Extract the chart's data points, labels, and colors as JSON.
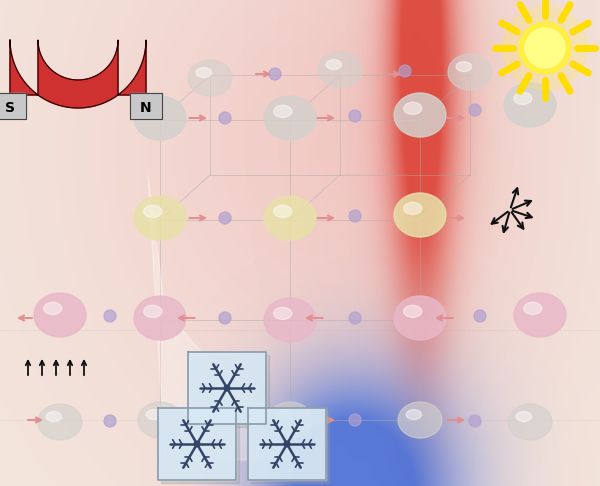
{
  "bg_color": "#f2e4dc",
  "fig_width": 6.0,
  "fig_height": 4.86,
  "dpi": 100,
  "magnet_color": "#cc2222",
  "magnet_silver": "#c8c8c8",
  "sun_yellow": "#ffee00",
  "hot_red_r": 0.85,
  "hot_red_g": 0.15,
  "hot_red_b": 0.1,
  "cool_blue_r": 0.15,
  "cool_blue_g": 0.35,
  "cool_blue_b": 0.85,
  "atom_gray": "#d4d0cc",
  "atom_pink": "#e8b8c8",
  "atom_lavender": "#d4b8e4",
  "atom_yellow": "#e8e0a8",
  "spin_color": "#e09090",
  "arrow_black": "#111111",
  "snow_bg": "#d8e8f4",
  "snow_line": "#334466"
}
